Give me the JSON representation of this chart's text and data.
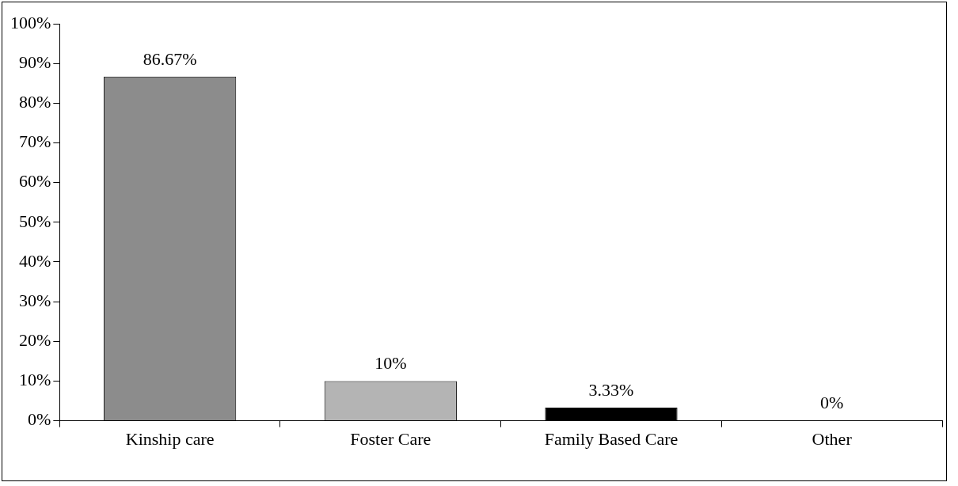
{
  "chart_data": {
    "type": "bar",
    "categories": [
      "Kinship care",
      "Foster Care",
      "Family Based Care",
      "Other"
    ],
    "values": [
      86.67,
      10,
      3.33,
      0
    ],
    "value_labels": [
      "86.67%",
      "10%",
      "3.33%",
      "0%"
    ],
    "colors": [
      "#8c8c8c",
      "#b4b4b4",
      "#000000",
      "#808080"
    ],
    "ylim": [
      0,
      100
    ],
    "yticks": [
      {
        "value": 0,
        "label": "0%"
      },
      {
        "value": 10,
        "label": "10%"
      },
      {
        "value": 20,
        "label": "20%"
      },
      {
        "value": 30,
        "label": "30%"
      },
      {
        "value": 40,
        "label": "40%"
      },
      {
        "value": 50,
        "label": "50%"
      },
      {
        "value": 60,
        "label": "60%"
      },
      {
        "value": 70,
        "label": "70%"
      },
      {
        "value": 80,
        "label": "80%"
      },
      {
        "value": 90,
        "label": "90%"
      },
      {
        "value": 100,
        "label": "100%"
      }
    ]
  }
}
